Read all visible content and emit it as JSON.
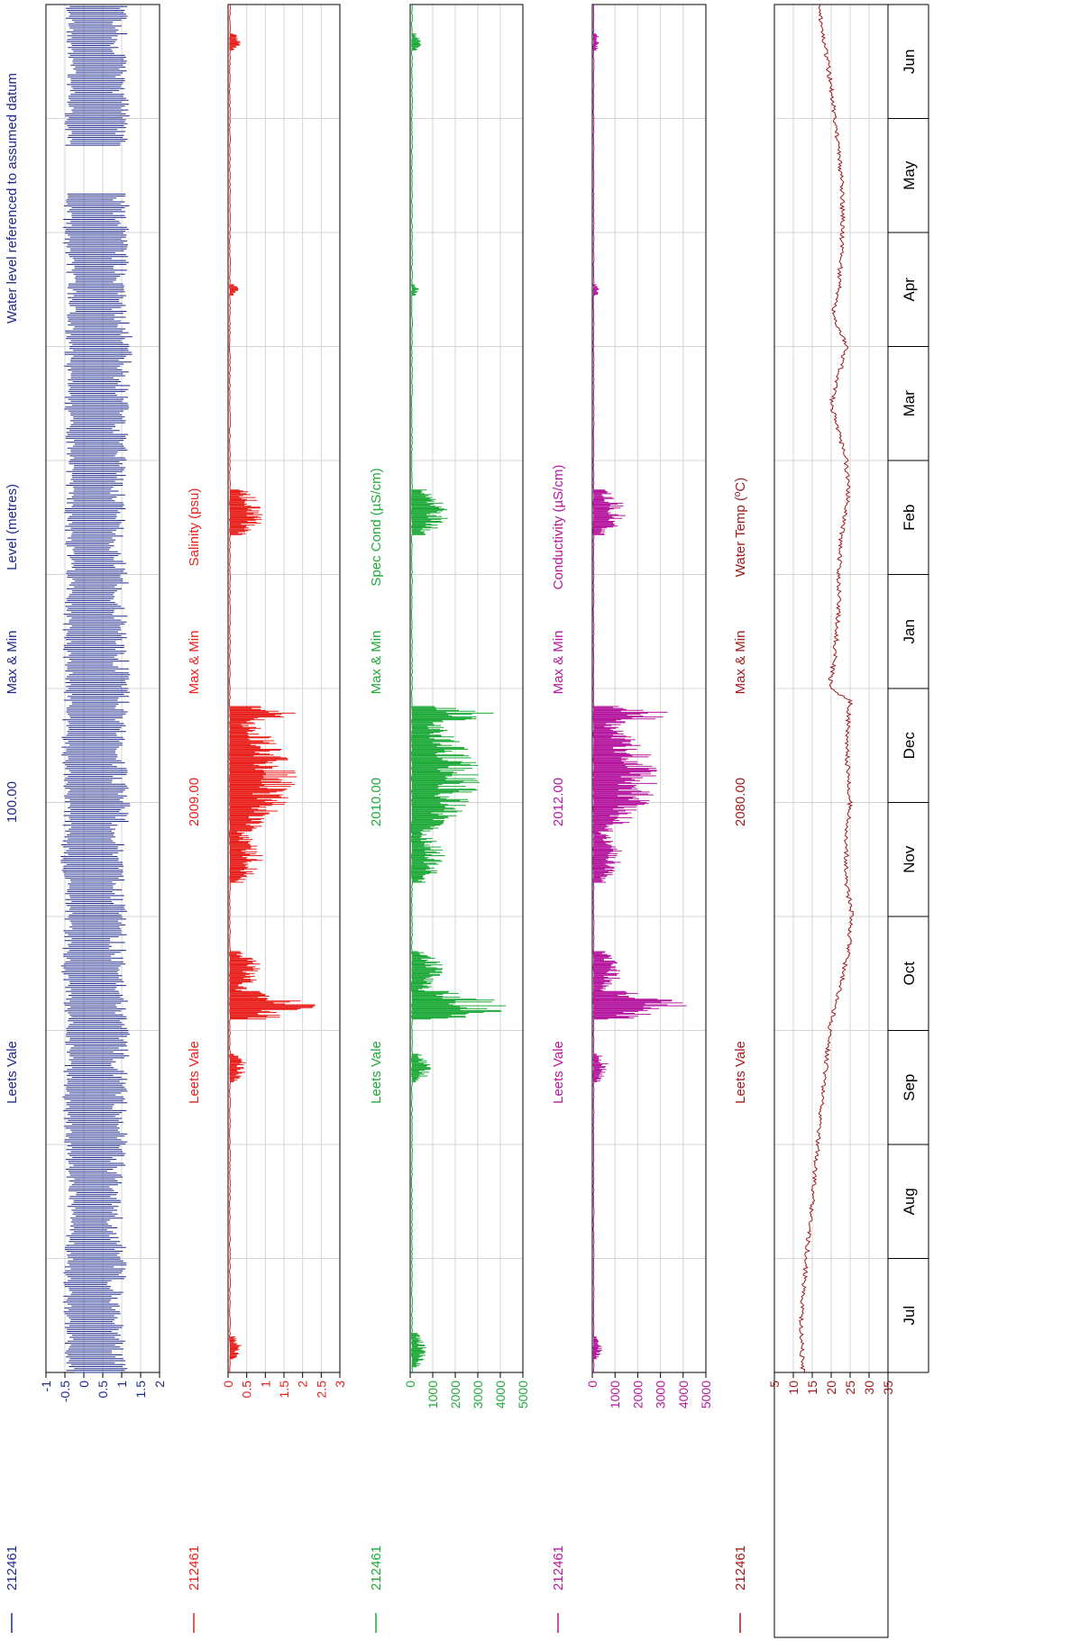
{
  "chart_data": [
    {
      "type": "line",
      "station": "212461",
      "site": "Leets Vale",
      "code": "100.00",
      "stat": "Max & Min",
      "label": "Level (metres)",
      "note": "Water level referenced to assumed datum",
      "color": "#1e2a8c",
      "ylim": [
        -1,
        2
      ],
      "yticks": [
        2,
        1.5,
        1,
        0.5,
        0,
        -0.5,
        -1
      ],
      "ytick_labels": [
        "2",
        "1.5",
        "1",
        "0.5",
        "0",
        "-0.5",
        "-1"
      ],
      "band_anchors": [
        [
          0,
          -0.35,
          1.2
        ],
        [
          0.5,
          -0.45,
          1.05
        ],
        [
          1,
          -0.4,
          1.15
        ],
        [
          1.5,
          -0.3,
          1.0
        ],
        [
          2,
          -0.4,
          1.2
        ],
        [
          2.5,
          -0.45,
          1.15
        ],
        [
          3,
          -0.35,
          1.25
        ],
        [
          3.5,
          -0.5,
          1.1
        ],
        [
          4,
          -0.4,
          1.2
        ],
        [
          4.5,
          -0.5,
          1.05
        ],
        [
          5,
          -0.4,
          1.25
        ],
        [
          5.5,
          -0.5,
          1.1
        ],
        [
          6,
          -0.4,
          1.3
        ],
        [
          6.5,
          -0.45,
          1.15
        ],
        [
          7,
          -0.35,
          1.2
        ],
        [
          7.5,
          -0.4,
          1.1
        ],
        [
          8,
          -0.35,
          1.15
        ],
        [
          8.5,
          -0.4,
          1.2
        ],
        [
          9,
          -0.4,
          1.35
        ],
        [
          9.5,
          -0.3,
          1.1
        ],
        [
          10,
          -0.45,
          1.3
        ],
        [
          10.5,
          -0.35,
          1.1
        ],
        [
          11,
          -0.4,
          1.25
        ],
        [
          11.5,
          -0.3,
          1.15
        ],
        [
          12,
          -0.4,
          1.2
        ]
      ],
      "gaps": [
        [
          10.35,
          10.75
        ]
      ]
    },
    {
      "type": "line",
      "station": "212461",
      "site": "Leets Vale",
      "code": "2009.00",
      "stat": "Max & Min",
      "label": "Salinity (psu)",
      "color": "#e8211c",
      "ylim": [
        0,
        3
      ],
      "yticks": [
        3,
        2.5,
        2,
        1.5,
        1,
        0.5,
        0
      ],
      "ytick_labels": [
        "3",
        "2.5",
        "2",
        "1.5",
        "1",
        "0.5",
        "0"
      ],
      "baseline": 0.05,
      "spike_ranges": [
        [
          0.12,
          0.32,
          0.35
        ],
        [
          2.55,
          2.8,
          0.5
        ],
        [
          3.1,
          3.35,
          2.6
        ],
        [
          3.35,
          3.7,
          0.9
        ],
        [
          4.3,
          4.75,
          0.9
        ],
        [
          4.75,
          5.7,
          1.8
        ],
        [
          5.7,
          5.85,
          2.2
        ],
        [
          7.35,
          7.75,
          1.0
        ],
        [
          9.45,
          9.55,
          0.25
        ],
        [
          11.6,
          11.75,
          0.3
        ]
      ]
    },
    {
      "type": "line",
      "station": "212461",
      "site": "Leets Vale",
      "code": "2010.00",
      "stat": "Max & Min",
      "label": "Spec Cond (µS/cm)",
      "color": "#1faa3a",
      "ylim": [
        0,
        5000
      ],
      "yticks": [
        5000,
        4000,
        3000,
        2000,
        1000,
        0
      ],
      "ytick_labels": [
        "5000",
        "4000",
        "3000",
        "2000",
        "1000",
        "0"
      ],
      "baseline": 80,
      "spike_ranges": [
        [
          0.05,
          0.35,
          700
        ],
        [
          2.55,
          2.8,
          900
        ],
        [
          3.1,
          3.35,
          4600
        ],
        [
          3.35,
          3.7,
          1500
        ],
        [
          4.3,
          4.75,
          1500
        ],
        [
          4.75,
          5.7,
          3100
        ],
        [
          5.7,
          5.85,
          3900
        ],
        [
          7.35,
          7.75,
          1700
        ],
        [
          9.45,
          9.55,
          400
        ],
        [
          11.6,
          11.75,
          450
        ]
      ]
    },
    {
      "type": "line",
      "station": "212461",
      "site": "Leets Vale",
      "code": "2012.00",
      "stat": "Max & Min",
      "label": "Conductivity (µS/cm)",
      "color": "#b5179e",
      "ylim": [
        0,
        5000
      ],
      "yticks": [
        5000,
        4000,
        3000,
        2000,
        1000,
        0
      ],
      "ytick_labels": [
        "5000",
        "4000",
        "3000",
        "2000",
        "1000",
        "0"
      ],
      "baseline": 60,
      "spike_ranges": [
        [
          0.12,
          0.32,
          400
        ],
        [
          2.55,
          2.8,
          700
        ],
        [
          3.1,
          3.35,
          4100
        ],
        [
          3.35,
          3.7,
          1300
        ],
        [
          4.3,
          4.75,
          1300
        ],
        [
          4.75,
          5.7,
          2900
        ],
        [
          5.7,
          5.85,
          3500
        ],
        [
          7.35,
          7.75,
          1500
        ],
        [
          9.45,
          9.55,
          300
        ],
        [
          11.6,
          11.75,
          300
        ]
      ]
    },
    {
      "type": "line",
      "station": "212461",
      "site": "Leets Vale",
      "code": "2080.00",
      "stat": "Max & Min",
      "label": "Water Temp (ºC)",
      "color": "#9e1a1a",
      "ylim": [
        5,
        35
      ],
      "yticks": [
        35,
        30,
        25,
        20,
        15,
        10,
        5
      ],
      "ytick_labels": [
        "35",
        "30",
        "25",
        "20",
        "15",
        "10",
        "5"
      ],
      "series": [
        [
          0,
          12.5
        ],
        [
          0.5,
          12.0
        ],
        [
          1,
          13.5
        ],
        [
          1.5,
          15.0
        ],
        [
          2,
          16.5
        ],
        [
          2.5,
          18.0
        ],
        [
          3,
          19.5
        ],
        [
          3.4,
          22.5
        ],
        [
          3.7,
          24.5
        ],
        [
          4,
          25.5
        ],
        [
          4.3,
          24.0
        ],
        [
          4.7,
          24.0
        ],
        [
          5,
          25.0
        ],
        [
          5.5,
          24.0
        ],
        [
          5.9,
          25.0
        ],
        [
          6.0,
          19.5
        ],
        [
          6.3,
          21.0
        ],
        [
          6.7,
          22.0
        ],
        [
          7,
          22.0
        ],
        [
          7.3,
          22.5
        ],
        [
          7.7,
          24.5
        ],
        [
          8,
          24.0
        ],
        [
          8.5,
          20.0
        ],
        [
          9,
          24.0
        ],
        [
          9.3,
          20.5
        ],
        [
          9.5,
          22.0
        ],
        [
          10,
          23.0
        ],
        [
          10.4,
          23.0
        ],
        [
          11,
          21.0
        ],
        [
          11.5,
          19.0
        ],
        [
          12,
          16.5
        ]
      ]
    }
  ],
  "months": [
    "Jul",
    "Aug",
    "Sep",
    "Oct",
    "Nov",
    "Dec",
    "Jan",
    "Feb",
    "Mar",
    "Apr",
    "May",
    "Jun"
  ]
}
